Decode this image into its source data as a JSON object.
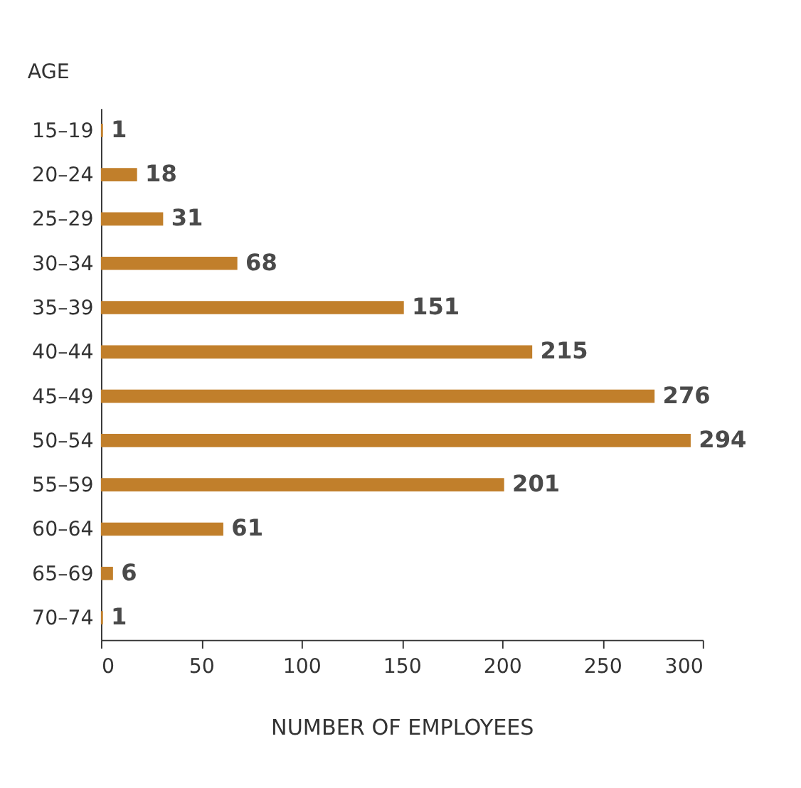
{
  "chart_data": {
    "type": "bar",
    "orientation": "horizontal",
    "ylabel": "AGE",
    "xlabel": "NUMBER OF EMPLOYEES",
    "categories": [
      "15–19",
      "20–24",
      "25–29",
      "30–34",
      "35–39",
      "40–44",
      "45–49",
      "50–54",
      "55–59",
      "60–64",
      "65–69",
      "70–74"
    ],
    "values": [
      1,
      18,
      31,
      68,
      151,
      215,
      276,
      294,
      201,
      61,
      6,
      1
    ],
    "color": "#c17f2b",
    "xlim": [
      0,
      300
    ],
    "xticks": [
      0,
      50,
      100,
      150,
      200,
      250,
      300
    ],
    "data_labels": true,
    "grid": false
  }
}
